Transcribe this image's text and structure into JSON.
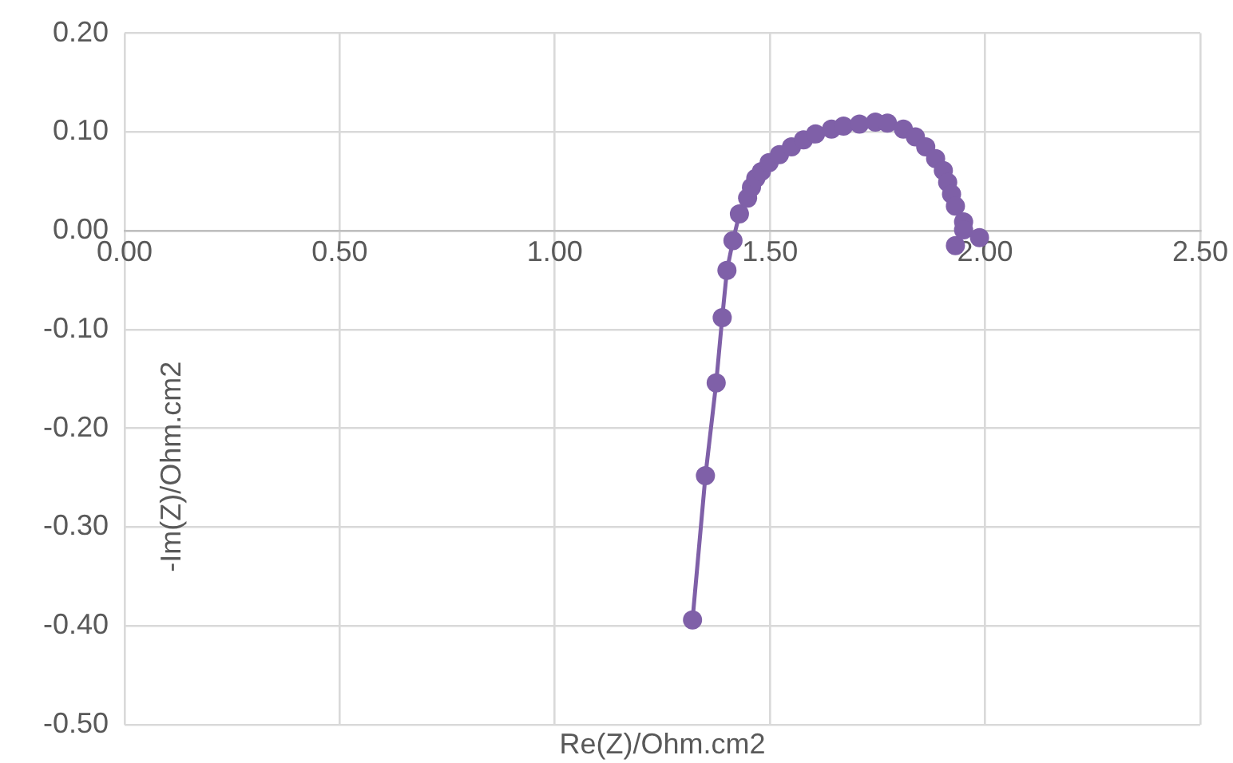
{
  "chart_data": {
    "type": "line",
    "xlabel": "Re(Z)/Ohm.cm2",
    "ylabel": "-Im(Z)/Ohm.cm2",
    "xlim": [
      0,
      2.5
    ],
    "xticks": [
      {
        "value": 0,
        "label": "0.00"
      },
      {
        "value": 0.5,
        "label": "0.50"
      },
      {
        "value": 1,
        "label": "1.00"
      },
      {
        "value": 1.5,
        "label": "1.50"
      },
      {
        "value": 2,
        "label": "2.00"
      },
      {
        "value": 2.5,
        "label": "2.50"
      }
    ],
    "ylim": [
      -0.5,
      0.2
    ],
    "yticks": [
      {
        "value": -0.5,
        "label": "-0.50"
      },
      {
        "value": -0.4,
        "label": "-0.40"
      },
      {
        "value": -0.3,
        "label": "-0.30"
      },
      {
        "value": -0.2,
        "label": "-0.20"
      },
      {
        "value": -0.1,
        "label": "-0.10"
      },
      {
        "value": 0,
        "label": "0.00"
      },
      {
        "value": 0.1,
        "label": "0.10"
      },
      {
        "value": 0.2,
        "label": "0.20"
      }
    ],
    "grid": true,
    "marker": "circle",
    "line_style": "solid",
    "series": [
      {
        "color": "#7f60a8",
        "x": [
          1.32,
          1.35,
          1.375,
          1.389,
          1.4,
          1.414,
          1.429,
          1.448,
          1.457,
          1.467,
          1.48,
          1.498,
          1.522,
          1.55,
          1.578,
          1.606,
          1.643,
          1.671,
          1.708,
          1.745,
          1.773,
          1.81,
          1.838,
          1.862,
          1.885,
          1.903,
          1.913,
          1.922,
          1.931,
          1.95,
          1.931,
          1.95,
          1.987
        ],
        "values": [
          -0.394,
          -0.248,
          -0.154,
          -0.088,
          -0.04,
          -0.01,
          0.017,
          0.033,
          0.044,
          0.053,
          0.06,
          0.069,
          0.077,
          0.085,
          0.092,
          0.098,
          0.103,
          0.106,
          0.108,
          0.11,
          0.109,
          0.103,
          0.095,
          0.085,
          0.073,
          0.061,
          0.049,
          0.037,
          0.025,
          0.009,
          -0.015,
          0.001,
          -0.007
        ]
      }
    ]
  }
}
